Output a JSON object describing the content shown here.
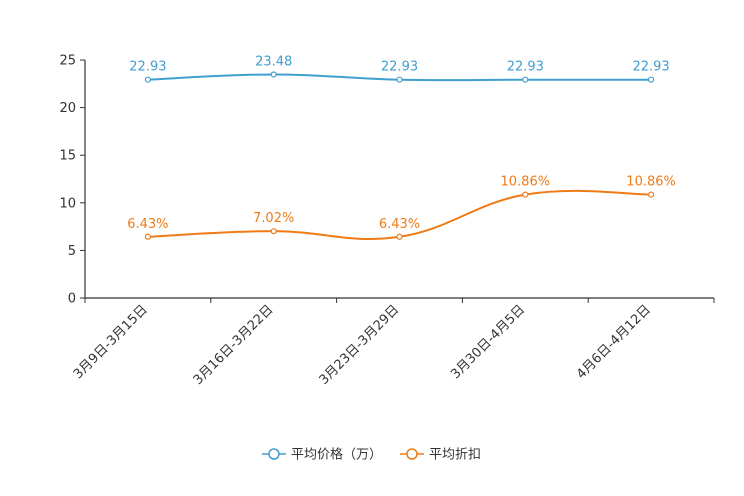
{
  "chart_data": {
    "type": "line",
    "title": "",
    "xlabel": "",
    "ylabel": "",
    "categories": [
      "3月9日-3月15日",
      "3月16日-3月22日",
      "3月23日-3月29日",
      "3月30日-4月5日",
      "4月6日-4月12日"
    ],
    "ylim": [
      0,
      25
    ],
    "yticks": [
      0,
      5,
      10,
      15,
      20,
      25
    ],
    "grid": false,
    "legend_position": "bottom",
    "series": [
      {
        "name": "平均价格（万）",
        "color": "#3e9fd0",
        "values": [
          22.93,
          23.48,
          22.93,
          22.93,
          22.93
        ],
        "labels": [
          "22.93",
          "23.48",
          "22.93",
          "22.93",
          "22.93"
        ]
      },
      {
        "name": "平均折扣",
        "color": "#ef7b16",
        "values": [
          6.43,
          7.02,
          6.43,
          10.86,
          10.86
        ],
        "labels": [
          "6.43%",
          "7.02%",
          "6.43%",
          "10.86%",
          "10.86%"
        ]
      }
    ]
  }
}
